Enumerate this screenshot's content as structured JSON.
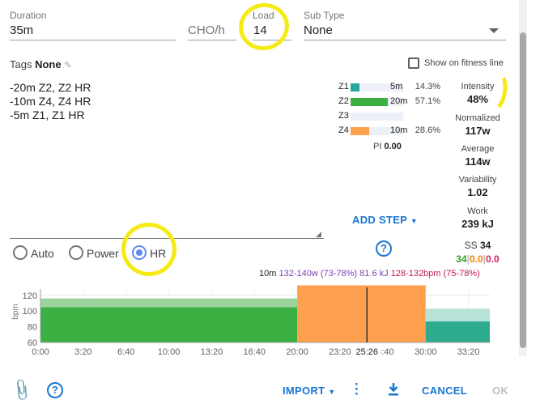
{
  "header": {
    "duration_label": "Duration",
    "duration_value": "35m",
    "cho_label": "CHO/h",
    "load_label": "Load",
    "load_value": "14",
    "subtype_label": "Sub Type",
    "subtype_value": "None"
  },
  "tags": {
    "label": "Tags",
    "value": "None"
  },
  "fitness_line": {
    "label": "Show on fitness line",
    "checked": false
  },
  "description_lines": [
    "-20m Z2, Z2 HR",
    "-10m Z4, Z4 HR",
    "-5m Z1, Z1 HR"
  ],
  "zones": [
    {
      "name": "Z1",
      "duration": "5m",
      "percent": "14.3%",
      "fraction": 0.143,
      "color": "#26a69a"
    },
    {
      "name": "Z2",
      "duration": "20m",
      "percent": "57.1%",
      "fraction": 0.571,
      "color": "#3cb043"
    },
    {
      "name": "Z3",
      "duration": "",
      "percent": "",
      "fraction": 0,
      "color": "#ffd54f"
    },
    {
      "name": "Z4",
      "duration": "10m",
      "percent": "28.6%",
      "fraction": 0.286,
      "color": "#ffa04f"
    }
  ],
  "pi": {
    "label": "PI",
    "value": "0.00"
  },
  "metrics": {
    "intensity": {
      "label": "Intensity",
      "value": "48%"
    },
    "normalized": {
      "label": "Normalized",
      "value": "117w"
    },
    "average": {
      "label": "Average",
      "value": "114w"
    },
    "variability": {
      "label": "Variability",
      "value": "1.02"
    },
    "work": {
      "label": "Work",
      "value": "239 kJ"
    },
    "ss": {
      "label": "SS",
      "value": "34",
      "parts": [
        "34",
        "0.0",
        "0.0"
      ]
    }
  },
  "add_step_label": "ADD STEP",
  "help_glyph": "?",
  "target_mode": {
    "options": [
      "Auto",
      "Power",
      "HR"
    ],
    "selected": "HR"
  },
  "step_summary": {
    "duration": "10m",
    "power": "132-140w (73-78%)",
    "energy": "81.6 kJ",
    "hr": "128-132bpm (75-78%)"
  },
  "chart_data": {
    "type": "bar",
    "ylabel": "bpm",
    "ylim": [
      60,
      128
    ],
    "yticks": [
      60,
      80,
      100,
      120
    ],
    "xlim": [
      0,
      35
    ],
    "xticks": [
      "0:00",
      "3:20",
      "6:40",
      "10:00",
      "13:20",
      "16:40",
      "20:00",
      "23:20",
      "26:40",
      "30:00",
      "33:20"
    ],
    "cursor_label": "25:26",
    "cursor_x": 25.43,
    "steps": [
      {
        "start": 0,
        "end": 20,
        "low": 100,
        "high": 104,
        "upper": 116,
        "color": "#3cb043",
        "light": "#9bd39d"
      },
      {
        "start": 20,
        "end": 30,
        "low": 128,
        "high": 132,
        "upper": 132,
        "color": "#ffa04f",
        "light": "#ffc38e"
      },
      {
        "start": 30,
        "end": 35,
        "low": 82,
        "high": 86,
        "upper": 103,
        "color": "#2eaa8e",
        "light": "#b6e2d8"
      }
    ]
  },
  "footer": {
    "import_label": "IMPORT",
    "cancel_label": "CANCEL",
    "ok_label": "OK"
  },
  "colors": {
    "accent": "#1976d2",
    "highlight": "#f5ea14",
    "ss_green": "#2e9e2e",
    "ss_orange": "#f57c00",
    "ss_red": "#d81b60",
    "power_text": "#7b3fb0",
    "hr_text": "#c2185b"
  }
}
